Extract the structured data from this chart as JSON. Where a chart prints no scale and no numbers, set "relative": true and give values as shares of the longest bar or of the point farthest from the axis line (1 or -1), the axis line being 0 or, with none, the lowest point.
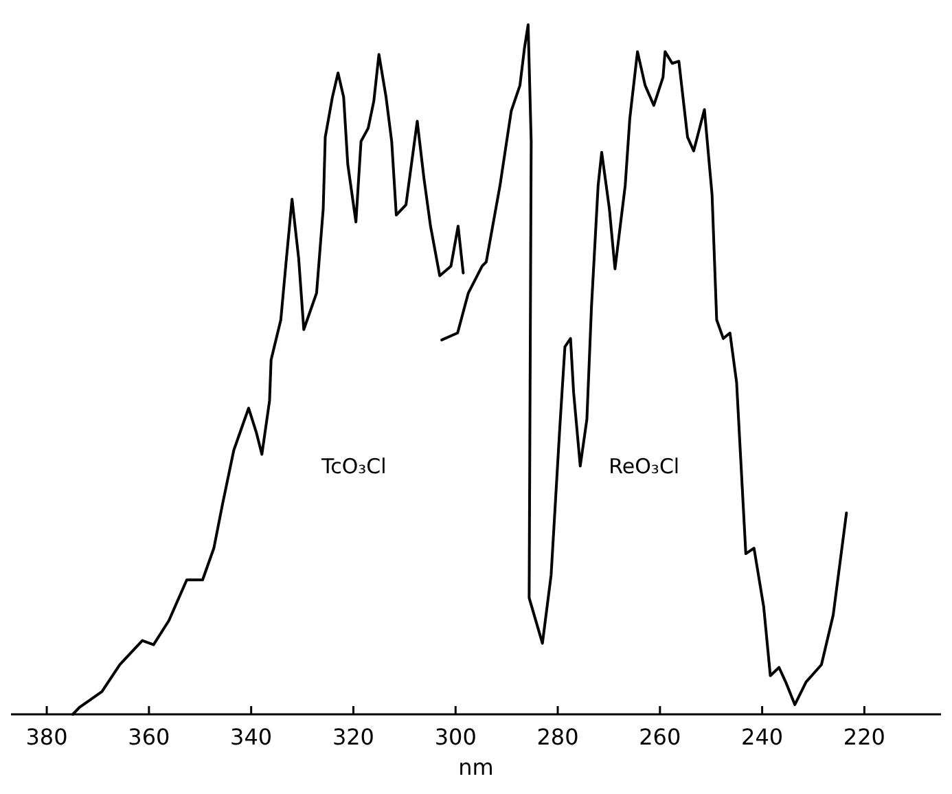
{
  "chart_data": {
    "type": "line",
    "xlabel": "nm",
    "relative": true,
    "xlim": [
      387,
      205
    ],
    "xticks": [
      380,
      360,
      340,
      320,
      300,
      280,
      260,
      240,
      220
    ],
    "grid": false,
    "legend": false,
    "marker": "none",
    "line_style": "solid",
    "series": [
      {
        "name": "TcO₃Cl",
        "color": "#000000",
        "x": [
          374.9,
          373.6,
          369.2,
          365.7,
          361.3,
          359.1,
          356.1,
          352.6,
          349.5,
          347.3,
          345.6,
          343.4,
          340.5,
          339.0,
          337.9,
          336.4,
          336.1,
          334.2,
          333.1,
          332.0,
          330.7,
          329.7,
          327.2,
          325.9,
          325.5,
          324.1,
          323.0,
          321.9,
          321.1,
          319.5,
          318.5,
          317.1,
          316.0,
          315.0,
          313.6,
          312.5,
          311.6,
          309.7,
          307.5,
          306.2,
          304.9,
          303.1,
          300.9,
          299.5,
          298.5
        ],
        "values": [
          0,
          0.01,
          0.033,
          0.072,
          0.107,
          0.101,
          0.136,
          0.195,
          0.195,
          0.241,
          0.305,
          0.383,
          0.444,
          0.409,
          0.377,
          0.455,
          0.514,
          0.572,
          0.661,
          0.747,
          0.661,
          0.558,
          0.611,
          0.733,
          0.837,
          0.895,
          0.93,
          0.895,
          0.798,
          0.714,
          0.831,
          0.85,
          0.889,
          0.957,
          0.895,
          0.831,
          0.724,
          0.739,
          0.86,
          0.778,
          0.708,
          0.636,
          0.65,
          0.708,
          0.64
        ]
      },
      {
        "name": "ReO₃Cl",
        "color": "#000000",
        "x": [
          302.7,
          299.6,
          297.5,
          294.8,
          294.0,
          291.3,
          289.1,
          287.4,
          286.5,
          285.8,
          285.2,
          285.6,
          283.0,
          281.3,
          279.6,
          278.6,
          277.5,
          276.9,
          275.6,
          274.3,
          273.4,
          272.1,
          271.4,
          269.9,
          268.8,
          266.8,
          265.9,
          264.4,
          262.9,
          261.2,
          259.4,
          259.0,
          257.6,
          256.3,
          254.6,
          253.4,
          251.3,
          249.8,
          248.9,
          247.6,
          246.3,
          245.0,
          243.2,
          241.6,
          239.7,
          238.4,
          236.7,
          235.4,
          233.6,
          231.4,
          228.4,
          226.1,
          223.5
        ],
        "values": [
          0.543,
          0.553,
          0.611,
          0.65,
          0.656,
          0.767,
          0.875,
          0.912,
          0.967,
          1,
          0.831,
          0.169,
          0.103,
          0.202,
          0.416,
          0.533,
          0.545,
          0.467,
          0.36,
          0.428,
          0.591,
          0.767,
          0.815,
          0.733,
          0.646,
          0.767,
          0.864,
          0.961,
          0.912,
          0.883,
          0.924,
          0.961,
          0.944,
          0.947,
          0.837,
          0.817,
          0.877,
          0.753,
          0.572,
          0.545,
          0.553,
          0.481,
          0.233,
          0.241,
          0.156,
          0.056,
          0.068,
          0.047,
          0.014,
          0.047,
          0.072,
          0.144,
          0.292
        ]
      }
    ]
  }
}
